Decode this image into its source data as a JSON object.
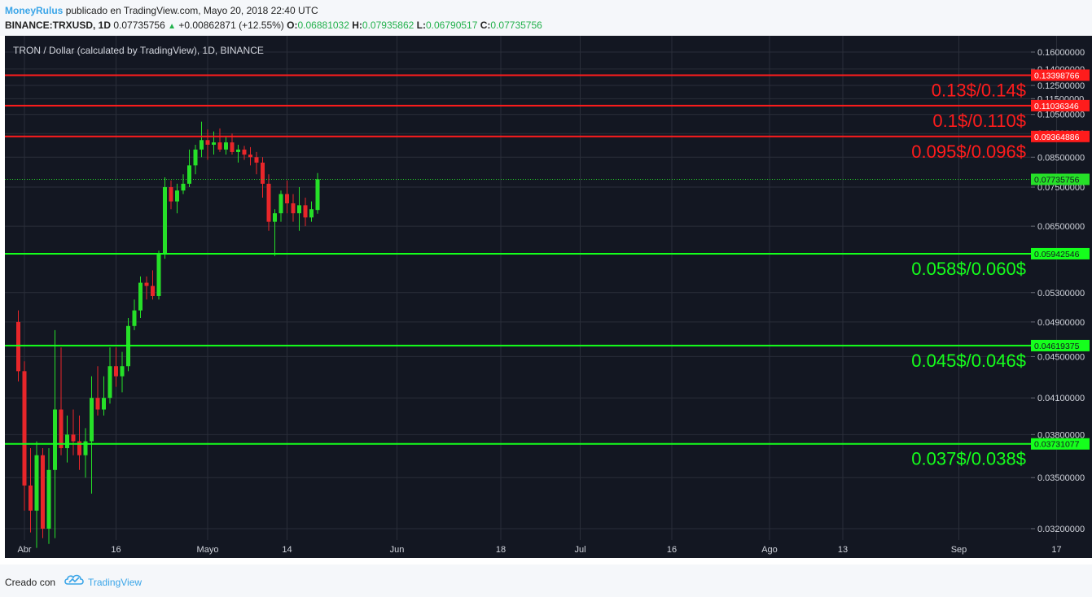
{
  "header": {
    "author": "MoneyRulus",
    "published": "publicado en TradingView.com, Mayo 20, 2018 22:40 UTC",
    "symbol": "BINANCE:TRXUSD, 1D",
    "last": "0.07735756",
    "change": "+0.00862871 (+12.55%)",
    "o_label": "O:",
    "o_value": "0.06881032",
    "h_label": "H:",
    "h_value": "0.07935862",
    "l_label": "L:",
    "l_value": "0.06790517",
    "c_label": "C:",
    "c_value": "0.07735756"
  },
  "footer": {
    "created_with": "Creado con",
    "brand": "TradingView"
  },
  "colors": {
    "background": "#131722",
    "grid": "#2a2e39",
    "up": "#26e028",
    "down": "#e8262a",
    "resistance": "#ff1c1c",
    "support": "#15ff1c",
    "axis_text": "#d1d4dc"
  },
  "chart_data": {
    "type": "candlestick",
    "title": "TRON / Dollar (calculated by TradingView), 1D, BINANCE",
    "y_ticks": [
      "0.16000000",
      "0.14000000",
      "0.12500000",
      "0.11500000",
      "0.10500000",
      "0.09500000",
      "0.08500000",
      "0.07500000",
      "0.06500000",
      "0.05300000",
      "0.04900000",
      "0.04500000",
      "0.04100000",
      "0.03800000",
      "0.03500000",
      "0.03200000"
    ],
    "x_ticks": [
      "Abr",
      "16",
      "Mayo",
      "14",
      "Jun",
      "18",
      "Jul",
      "16",
      "Ago",
      "13",
      "Sep",
      "17"
    ],
    "current_price": {
      "label": "0.07735756",
      "value": 0.07735756
    },
    "levels": [
      {
        "label": "0.13398766",
        "value": 0.13398766,
        "kind": "resistance",
        "zone_text": "0.13$/0.14$"
      },
      {
        "label": "0.11036346",
        "value": 0.11036346,
        "kind": "resistance",
        "zone_text": "0.1$/0.110$"
      },
      {
        "label": "0.09364886",
        "value": 0.09364886,
        "kind": "resistance",
        "zone_text": "0.095$/0.096$"
      },
      {
        "label": "0.05942546",
        "value": 0.05942546,
        "kind": "support",
        "zone_text": "0.058$/0.060$"
      },
      {
        "label": "0.04619375",
        "value": 0.04619375,
        "kind": "support",
        "zone_text": "0.045$/0.046$"
      },
      {
        "label": "0.03731077",
        "value": 0.03731077,
        "kind": "support",
        "zone_text": "0.037$/0.038$"
      }
    ],
    "candles": [
      {
        "date": "2018-03-31",
        "open": 0.049,
        "high": 0.0505,
        "low": 0.0425,
        "close": 0.0435
      },
      {
        "date": "2018-04-01",
        "open": 0.0435,
        "high": 0.0445,
        "low": 0.033,
        "close": 0.0345
      },
      {
        "date": "2018-04-02",
        "open": 0.0345,
        "high": 0.037,
        "low": 0.0318,
        "close": 0.033
      },
      {
        "date": "2018-04-03",
        "open": 0.033,
        "high": 0.0375,
        "low": 0.031,
        "close": 0.0365
      },
      {
        "date": "2018-04-04",
        "open": 0.0365,
        "high": 0.037,
        "low": 0.0315,
        "close": 0.032
      },
      {
        "date": "2018-04-05",
        "open": 0.032,
        "high": 0.037,
        "low": 0.0312,
        "close": 0.0355
      },
      {
        "date": "2018-04-06",
        "open": 0.0355,
        "high": 0.048,
        "low": 0.0315,
        "close": 0.04
      },
      {
        "date": "2018-04-07",
        "open": 0.04,
        "high": 0.046,
        "low": 0.0365,
        "close": 0.037
      },
      {
        "date": "2018-04-08",
        "open": 0.037,
        "high": 0.0395,
        "low": 0.036,
        "close": 0.038
      },
      {
        "date": "2018-04-09",
        "open": 0.038,
        "high": 0.04,
        "low": 0.0365,
        "close": 0.0375
      },
      {
        "date": "2018-04-10",
        "open": 0.0375,
        "high": 0.0395,
        "low": 0.0355,
        "close": 0.0365
      },
      {
        "date": "2018-04-11",
        "open": 0.0365,
        "high": 0.0385,
        "low": 0.035,
        "close": 0.0375
      },
      {
        "date": "2018-04-12",
        "open": 0.0375,
        "high": 0.043,
        "low": 0.034,
        "close": 0.041
      },
      {
        "date": "2018-04-13",
        "open": 0.041,
        "high": 0.044,
        "low": 0.0395,
        "close": 0.04
      },
      {
        "date": "2018-04-14",
        "open": 0.04,
        "high": 0.043,
        "low": 0.0395,
        "close": 0.041
      },
      {
        "date": "2018-04-15",
        "open": 0.041,
        "high": 0.046,
        "low": 0.0405,
        "close": 0.044
      },
      {
        "date": "2018-04-16",
        "open": 0.044,
        "high": 0.046,
        "low": 0.042,
        "close": 0.043
      },
      {
        "date": "2018-04-17",
        "open": 0.043,
        "high": 0.0455,
        "low": 0.0415,
        "close": 0.044
      },
      {
        "date": "2018-04-18",
        "open": 0.044,
        "high": 0.0495,
        "low": 0.0435,
        "close": 0.0485
      },
      {
        "date": "2018-04-19",
        "open": 0.0485,
        "high": 0.052,
        "low": 0.048,
        "close": 0.0505
      },
      {
        "date": "2018-04-20",
        "open": 0.0505,
        "high": 0.0555,
        "low": 0.0495,
        "close": 0.0545
      },
      {
        "date": "2018-04-21",
        "open": 0.0545,
        "high": 0.0555,
        "low": 0.052,
        "close": 0.054
      },
      {
        "date": "2018-04-22",
        "open": 0.054,
        "high": 0.0565,
        "low": 0.052,
        "close": 0.0525
      },
      {
        "date": "2018-04-23",
        "open": 0.0525,
        "high": 0.06,
        "low": 0.052,
        "close": 0.0595
      },
      {
        "date": "2018-04-24",
        "open": 0.0595,
        "high": 0.078,
        "low": 0.0585,
        "close": 0.075
      },
      {
        "date": "2018-04-25",
        "open": 0.075,
        "high": 0.077,
        "low": 0.069,
        "close": 0.071
      },
      {
        "date": "2018-04-26",
        "open": 0.071,
        "high": 0.076,
        "low": 0.068,
        "close": 0.074
      },
      {
        "date": "2018-04-27",
        "open": 0.074,
        "high": 0.079,
        "low": 0.073,
        "close": 0.076
      },
      {
        "date": "2018-04-28",
        "open": 0.076,
        "high": 0.088,
        "low": 0.075,
        "close": 0.082
      },
      {
        "date": "2018-04-29",
        "open": 0.082,
        "high": 0.09,
        "low": 0.079,
        "close": 0.088
      },
      {
        "date": "2018-04-30",
        "open": 0.088,
        "high": 0.101,
        "low": 0.085,
        "close": 0.092
      },
      {
        "date": "2018-05-01",
        "open": 0.092,
        "high": 0.097,
        "low": 0.084,
        "close": 0.09
      },
      {
        "date": "2018-05-02",
        "open": 0.09,
        "high": 0.096,
        "low": 0.086,
        "close": 0.091
      },
      {
        "date": "2018-05-03",
        "open": 0.091,
        "high": 0.0975,
        "low": 0.087,
        "close": 0.088
      },
      {
        "date": "2018-05-04",
        "open": 0.088,
        "high": 0.0935,
        "low": 0.086,
        "close": 0.091
      },
      {
        "date": "2018-05-05",
        "open": 0.091,
        "high": 0.095,
        "low": 0.086,
        "close": 0.087
      },
      {
        "date": "2018-05-06",
        "open": 0.087,
        "high": 0.09,
        "low": 0.083,
        "close": 0.088
      },
      {
        "date": "2018-05-07",
        "open": 0.088,
        "high": 0.0895,
        "low": 0.084,
        "close": 0.086
      },
      {
        "date": "2018-05-08",
        "open": 0.086,
        "high": 0.089,
        "low": 0.082,
        "close": 0.085
      },
      {
        "date": "2018-05-09",
        "open": 0.085,
        "high": 0.087,
        "low": 0.079,
        "close": 0.083
      },
      {
        "date": "2018-05-10",
        "open": 0.083,
        "high": 0.085,
        "low": 0.072,
        "close": 0.076
      },
      {
        "date": "2018-05-11",
        "open": 0.076,
        "high": 0.079,
        "low": 0.064,
        "close": 0.066
      },
      {
        "date": "2018-05-12",
        "open": 0.066,
        "high": 0.069,
        "low": 0.059,
        "close": 0.068
      },
      {
        "date": "2018-05-13",
        "open": 0.068,
        "high": 0.074,
        "low": 0.066,
        "close": 0.073
      },
      {
        "date": "2018-05-14",
        "open": 0.073,
        "high": 0.077,
        "low": 0.068,
        "close": 0.0705
      },
      {
        "date": "2018-05-15",
        "open": 0.0705,
        "high": 0.073,
        "low": 0.066,
        "close": 0.068
      },
      {
        "date": "2018-05-16",
        "open": 0.068,
        "high": 0.075,
        "low": 0.064,
        "close": 0.07
      },
      {
        "date": "2018-05-17",
        "open": 0.07,
        "high": 0.072,
        "low": 0.065,
        "close": 0.067
      },
      {
        "date": "2018-05-18",
        "open": 0.067,
        "high": 0.071,
        "low": 0.066,
        "close": 0.069
      },
      {
        "date": "2018-05-19",
        "open": 0.0688,
        "high": 0.0794,
        "low": 0.0679,
        "close": 0.0774
      }
    ]
  }
}
